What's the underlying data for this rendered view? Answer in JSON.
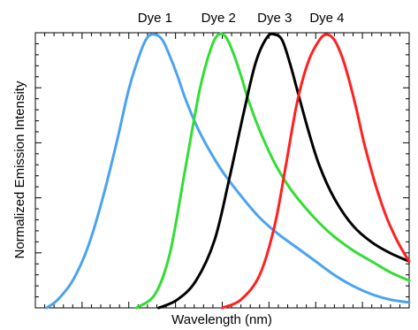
{
  "chart_data": {
    "type": "line",
    "title": "",
    "xlabel": "Wavelength (nm)",
    "ylabel": "Normalized Emission Intensity",
    "x_tick_labels_shown": false,
    "y_tick_labels_shown": false,
    "xlim": [
      0,
      100
    ],
    "ylim": [
      0,
      1
    ],
    "grid": false,
    "legend": "labels above curve peaks",
    "series": [
      {
        "name": "Dye 1",
        "color": "#4aa3f0",
        "x": [
          3,
          6,
          10,
          14,
          18,
          22,
          25,
          28,
          30,
          32,
          34,
          36,
          38,
          40,
          43,
          46,
          50,
          55,
          60,
          65,
          70,
          75,
          80,
          85,
          90,
          95,
          100
        ],
        "y": [
          0.0,
          0.03,
          0.1,
          0.22,
          0.4,
          0.62,
          0.8,
          0.93,
          0.99,
          1.0,
          0.98,
          0.92,
          0.85,
          0.77,
          0.67,
          0.59,
          0.5,
          0.41,
          0.33,
          0.27,
          0.22,
          0.17,
          0.12,
          0.08,
          0.05,
          0.03,
          0.02
        ]
      },
      {
        "name": "Dye 2",
        "color": "#33dd33",
        "x": [
          27,
          32,
          36,
          40,
          44,
          47,
          49,
          51,
          53,
          55,
          57,
          60,
          64,
          68,
          72,
          76,
          80,
          85,
          90,
          95,
          100
        ],
        "y": [
          0.0,
          0.05,
          0.2,
          0.5,
          0.8,
          0.95,
          1.0,
          0.99,
          0.93,
          0.85,
          0.76,
          0.65,
          0.53,
          0.44,
          0.37,
          0.31,
          0.26,
          0.21,
          0.17,
          0.13,
          0.1
        ]
      },
      {
        "name": "Dye 3",
        "color": "#000000",
        "x": [
          33,
          38,
          43,
          48,
          52,
          56,
          59,
          62,
          64,
          66,
          68,
          70,
          73,
          76,
          80,
          85,
          90,
          95,
          100
        ],
        "y": [
          0.0,
          0.03,
          0.1,
          0.25,
          0.48,
          0.73,
          0.9,
          0.99,
          1.0,
          0.98,
          0.9,
          0.8,
          0.65,
          0.52,
          0.4,
          0.3,
          0.24,
          0.2,
          0.17
        ]
      },
      {
        "name": "Dye 4",
        "color": "#ff2020",
        "x": [
          50,
          55,
          60,
          64,
          67,
          70,
          73,
          76,
          78,
          80,
          82,
          84,
          86,
          88,
          91,
          94,
          97,
          100
        ],
        "y": [
          0.0,
          0.03,
          0.12,
          0.3,
          0.52,
          0.75,
          0.9,
          0.98,
          1.0,
          0.98,
          0.92,
          0.83,
          0.72,
          0.6,
          0.45,
          0.33,
          0.24,
          0.17
        ]
      }
    ]
  }
}
